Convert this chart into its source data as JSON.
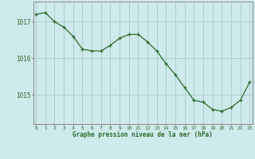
{
  "hours": [
    0,
    1,
    2,
    3,
    4,
    5,
    6,
    7,
    8,
    9,
    10,
    11,
    12,
    13,
    14,
    15,
    16,
    17,
    18,
    19,
    20,
    21,
    22,
    23
  ],
  "pressure": [
    1017.2,
    1017.25,
    1017.0,
    1016.85,
    1016.6,
    1016.25,
    1016.2,
    1016.2,
    1016.35,
    1016.55,
    1016.65,
    1016.65,
    1016.45,
    1016.2,
    1015.85,
    1015.55,
    1015.2,
    1014.85,
    1014.8,
    1014.6,
    1014.55,
    1014.65,
    1014.85,
    1015.35
  ],
  "line_color": "#2d6a2d",
  "marker": "+",
  "bg_color": "#ceeaea",
  "grid_color": "#aacfcf",
  "axis_color": "#888888",
  "label_color": "#2d6a2d",
  "xlabel": "Graphe pression niveau de la mer (hPa)",
  "yticks": [
    1015,
    1016,
    1017
  ],
  "ylim": [
    1014.2,
    1017.55
  ],
  "xlim": [
    -0.3,
    23.3
  ]
}
